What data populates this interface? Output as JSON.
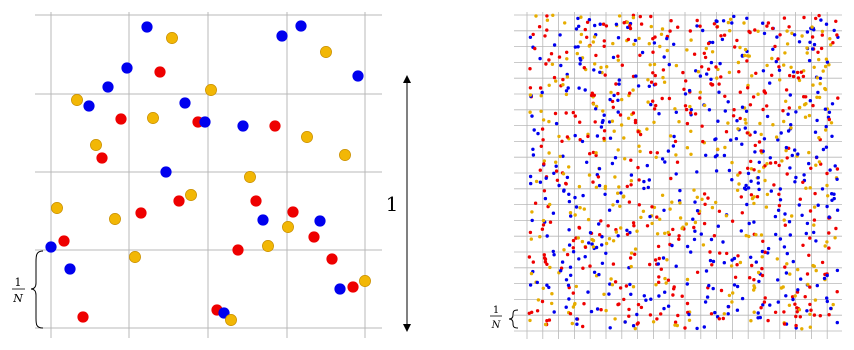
{
  "left_panel": {
    "scale_label": "1",
    "cell_numerator": "1",
    "cell_denominator": "N",
    "blue_color": "#0000ee",
    "red_color": "#ee0000",
    "gold_color": "#f2b705",
    "grid_color": "#b8b8b8"
  },
  "right_panel": {
    "cell_numerator": "1",
    "cell_denominator": "N",
    "blue_color": "#0000ee",
    "red_color": "#ee0000",
    "gold_color": "#e6ad00",
    "grid_color": "#b8b8b8"
  }
}
